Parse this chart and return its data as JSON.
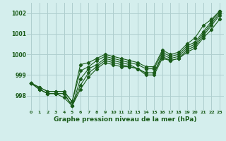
{
  "title": "Graphe pression niveau de la mer (hPa)",
  "xlim": [
    -0.5,
    23.5
  ],
  "ylim": [
    997.3,
    1002.5
  ],
  "yticks": [
    998,
    999,
    1000,
    1001,
    1002
  ],
  "xticks": [
    0,
    1,
    2,
    3,
    4,
    5,
    6,
    7,
    8,
    9,
    10,
    11,
    12,
    13,
    14,
    15,
    16,
    17,
    18,
    19,
    20,
    21,
    22,
    23
  ],
  "bg_color": "#d4eeed",
  "grid_color": "#aecece",
  "line_color": "#1a5c1a",
  "series": [
    [
      998.6,
      998.3,
      998.1,
      998.1,
      998.1,
      997.5,
      998.8,
      999.3,
      999.5,
      999.8,
      999.7,
      999.6,
      999.5,
      999.3,
      999.1,
      999.1,
      1000.0,
      999.8,
      999.9,
      1000.3,
      1000.5,
      1001.0,
      1001.5,
      1002.0
    ],
    [
      998.6,
      998.3,
      998.1,
      998.1,
      998.1,
      997.5,
      998.5,
      999.1,
      999.4,
      999.7,
      999.6,
      999.5,
      999.4,
      999.3,
      999.1,
      999.1,
      999.9,
      999.7,
      999.8,
      1000.2,
      1000.4,
      1000.9,
      1001.4,
      1001.9
    ],
    [
      998.6,
      998.3,
      998.1,
      998.1,
      997.9,
      997.5,
      998.3,
      998.9,
      999.3,
      999.6,
      999.5,
      999.4,
      999.4,
      999.3,
      999.0,
      999.0,
      999.8,
      999.7,
      999.8,
      1000.1,
      1000.3,
      1000.8,
      1001.2,
      1001.7
    ],
    [
      998.6,
      998.4,
      998.2,
      998.2,
      998.2,
      997.7,
      999.2,
      999.4,
      999.7,
      999.9,
      999.8,
      999.7,
      999.6,
      999.5,
      999.3,
      999.3,
      1000.1,
      999.9,
      1000.0,
      1000.4,
      1000.6,
      1001.1,
      1001.6,
      1002.1
    ],
    [
      998.6,
      998.4,
      998.2,
      998.2,
      998.2,
      997.7,
      999.5,
      999.6,
      999.8,
      1000.0,
      999.9,
      999.8,
      999.7,
      999.6,
      999.4,
      999.4,
      1000.2,
      1000.0,
      1000.1,
      1000.5,
      1000.8,
      1001.4,
      1001.7,
      1002.1
    ]
  ]
}
